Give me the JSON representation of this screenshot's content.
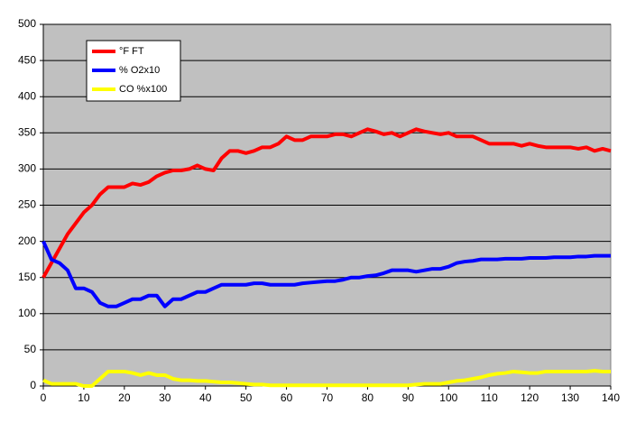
{
  "chart_data": {
    "type": "line",
    "x": [
      0,
      2,
      4,
      6,
      8,
      10,
      12,
      14,
      16,
      18,
      20,
      22,
      24,
      26,
      28,
      30,
      32,
      34,
      36,
      38,
      40,
      42,
      44,
      46,
      48,
      50,
      52,
      54,
      56,
      58,
      60,
      62,
      64,
      66,
      68,
      70,
      72,
      74,
      76,
      78,
      80,
      82,
      84,
      86,
      88,
      90,
      92,
      94,
      96,
      98,
      100,
      102,
      104,
      106,
      108,
      110,
      112,
      114,
      116,
      118,
      120,
      122,
      124,
      126,
      128,
      130,
      132,
      134,
      136,
      138,
      140
    ],
    "series": [
      {
        "name": "°F FT",
        "color": "#ff0000",
        "values": [
          150,
          170,
          190,
          210,
          225,
          240,
          250,
          265,
          275,
          275,
          275,
          280,
          278,
          282,
          290,
          295,
          298,
          298,
          300,
          305,
          300,
          298,
          315,
          325,
          325,
          322,
          325,
          330,
          330,
          335,
          345,
          340,
          340,
          345,
          345,
          345,
          348,
          348,
          345,
          350,
          355,
          352,
          348,
          350,
          345,
          350,
          355,
          352,
          350,
          348,
          350,
          345,
          345,
          345,
          340,
          335,
          335,
          335,
          335,
          332,
          335,
          332,
          330,
          330,
          330,
          330,
          328,
          330,
          325,
          328,
          325
        ]
      },
      {
        "name": "% O2x10",
        "color": "#0000ff",
        "values": [
          200,
          175,
          170,
          160,
          135,
          135,
          130,
          115,
          110,
          110,
          115,
          120,
          120,
          125,
          125,
          110,
          120,
          120,
          125,
          130,
          130,
          135,
          140,
          140,
          140,
          140,
          142,
          142,
          140,
          140,
          140,
          140,
          142,
          143,
          144,
          145,
          145,
          147,
          150,
          150,
          152,
          153,
          156,
          160,
          160,
          160,
          158,
          160,
          162,
          162,
          165,
          170,
          172,
          173,
          175,
          175,
          175,
          176,
          176,
          176,
          177,
          177,
          177,
          178,
          178,
          178,
          179,
          179,
          180,
          180,
          180
        ]
      },
      {
        "name": "CO %x100",
        "color": "#ffff00",
        "values": [
          8,
          3,
          3,
          3,
          3,
          0,
          0,
          10,
          20,
          20,
          20,
          18,
          15,
          18,
          15,
          15,
          10,
          8,
          8,
          7,
          7,
          6,
          5,
          5,
          4,
          3,
          2,
          2,
          1,
          1,
          1,
          1,
          1,
          1,
          1,
          1,
          1,
          1,
          1,
          1,
          1,
          1,
          1,
          1,
          1,
          1,
          2,
          3,
          3,
          3,
          5,
          7,
          8,
          10,
          12,
          15,
          17,
          18,
          20,
          19,
          18,
          18,
          20,
          20,
          20,
          20,
          20,
          20,
          21,
          20,
          20
        ]
      }
    ],
    "xlim": [
      0,
      140
    ],
    "xticks": [
      0,
      10,
      20,
      30,
      40,
      50,
      60,
      70,
      80,
      90,
      100,
      110,
      120,
      130,
      140
    ],
    "ylim": [
      0,
      500
    ],
    "yticks": [
      0,
      50,
      100,
      150,
      200,
      250,
      300,
      350,
      400,
      450,
      500
    ],
    "grid": true,
    "legend": "upper left"
  }
}
